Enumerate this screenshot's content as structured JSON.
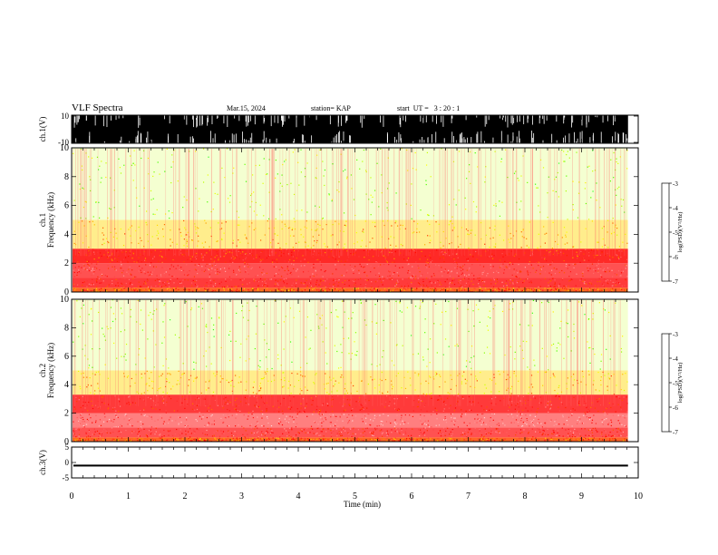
{
  "header": {
    "title": "VLF Spectra",
    "date": "Mar.15, 2024",
    "station": "station= KAP",
    "start": "start  UT =   3 : 20 : 1"
  },
  "colors": {
    "colorbar": [
      "#000080",
      "#0000ff",
      "#00c8ff",
      "#00ff80",
      "#40ff00",
      "#c8ff00",
      "#ffff00",
      "#ff8000",
      "#ff0000",
      "#ff6060",
      "#ffc8c8",
      "#ffffff"
    ],
    "waveform": "#000000",
    "spectrogram_background": "#ffffff"
  },
  "chart_data": [
    {
      "type": "area",
      "name": "ch1-waveform",
      "ylabel": "ch.1(V)",
      "ylim": [
        -10,
        10
      ],
      "y_ticks": [
        "10",
        "-10"
      ],
      "x_range_min": [
        0,
        9.82
      ],
      "note_values": "waveform saturated almost everywhere between -10 and 10 V"
    },
    {
      "type": "heatmap",
      "name": "ch1-spectrogram",
      "ylabel_lines": [
        "ch.1",
        "Frequency  (kHz)"
      ],
      "ylim": [
        0,
        10
      ],
      "y_ticks": [
        "0",
        "2",
        "4",
        "6",
        "8",
        "10"
      ],
      "colorbar": {
        "label": "log(PSD)(V²/Hz)",
        "range": [
          -7,
          -3
        ],
        "ticks": [
          "-3",
          "-4",
          "-5",
          "-6",
          "-7"
        ]
      },
      "bands": [
        {
          "f_low": 0.0,
          "f_high": 0.3,
          "level": -4.3
        },
        {
          "f_low": 0.3,
          "f_high": 1.0,
          "level": -4.0
        },
        {
          "f_low": 1.0,
          "f_high": 2.0,
          "level": -3.9
        },
        {
          "f_low": 2.0,
          "f_high": 3.0,
          "level": -4.1
        },
        {
          "f_low": 3.0,
          "f_high": 5.0,
          "level": -4.7
        },
        {
          "f_low": 5.0,
          "f_high": 10.0,
          "level": -5.2
        }
      ]
    },
    {
      "type": "heatmap",
      "name": "ch2-spectrogram",
      "ylabel_lines": [
        "ch.2",
        "Frequency  (kHz)"
      ],
      "ylim": [
        0,
        10
      ],
      "y_ticks": [
        "0",
        "2",
        "4",
        "6",
        "8",
        "10"
      ],
      "colorbar": {
        "label": "log(PSD)(V²/Hz)",
        "range": [
          -7,
          -3
        ],
        "ticks": [
          "-3",
          "-4",
          "-5",
          "-6",
          "-7"
        ]
      },
      "bands": [
        {
          "f_low": 0.0,
          "f_high": 0.3,
          "level": -4.3
        },
        {
          "f_low": 0.3,
          "f_high": 1.0,
          "level": -3.9
        },
        {
          "f_low": 1.0,
          "f_high": 2.0,
          "level": -3.7
        },
        {
          "f_low": 2.0,
          "f_high": 3.3,
          "level": -4.0
        },
        {
          "f_low": 3.3,
          "f_high": 5.0,
          "level": -4.7
        },
        {
          "f_low": 5.0,
          "f_high": 10.0,
          "level": -5.2
        }
      ]
    },
    {
      "type": "line",
      "name": "ch3-waveform",
      "ylabel": "ch.3(V)",
      "ylim": [
        -5,
        5
      ],
      "y_ticks": [
        "5",
        "0",
        "-5"
      ],
      "level_band": [
        -1.3,
        -0.7
      ],
      "x_range_min": [
        0,
        9.82
      ]
    }
  ],
  "x_axis": {
    "label": "Time  (min)",
    "range": [
      0,
      10
    ],
    "ticks": [
      "0",
      "1",
      "2",
      "3",
      "4",
      "5",
      "6",
      "7",
      "8",
      "9",
      "10"
    ]
  }
}
